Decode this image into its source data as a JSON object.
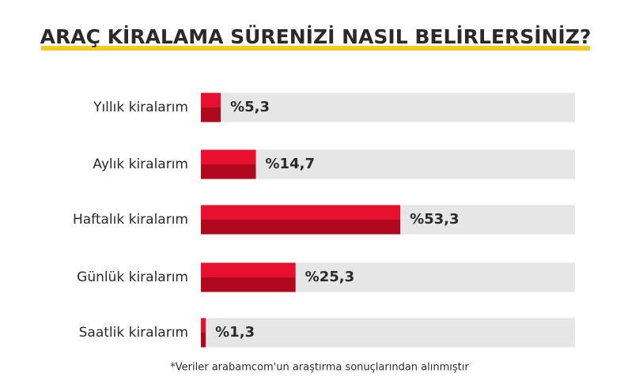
{
  "chart_data": {
    "type": "hbar",
    "title": "ARAÇ KİRALAMA SÜRENİZİ NASIL BELİRLERSİNİZ?",
    "categories": [
      "Yıllık kiralarım",
      "Aylık kiralarım",
      "Haftalık kiralarım",
      "Günlük kiralarım",
      "Saatlik kiralarım"
    ],
    "values": [
      5.3,
      14.7,
      53.3,
      25.3,
      1.3
    ],
    "value_labels": [
      "%5,3",
      "%14,7",
      "%53,3",
      "%25,3",
      "%1,3"
    ],
    "xlim": [
      0,
      100
    ],
    "color": "#e8102e",
    "shade_color": "#b0081e",
    "track_color": "#e6e6e6",
    "footnote": "*Veriler arabamcom'un araştırma sonuçlarından alınmıştır"
  }
}
